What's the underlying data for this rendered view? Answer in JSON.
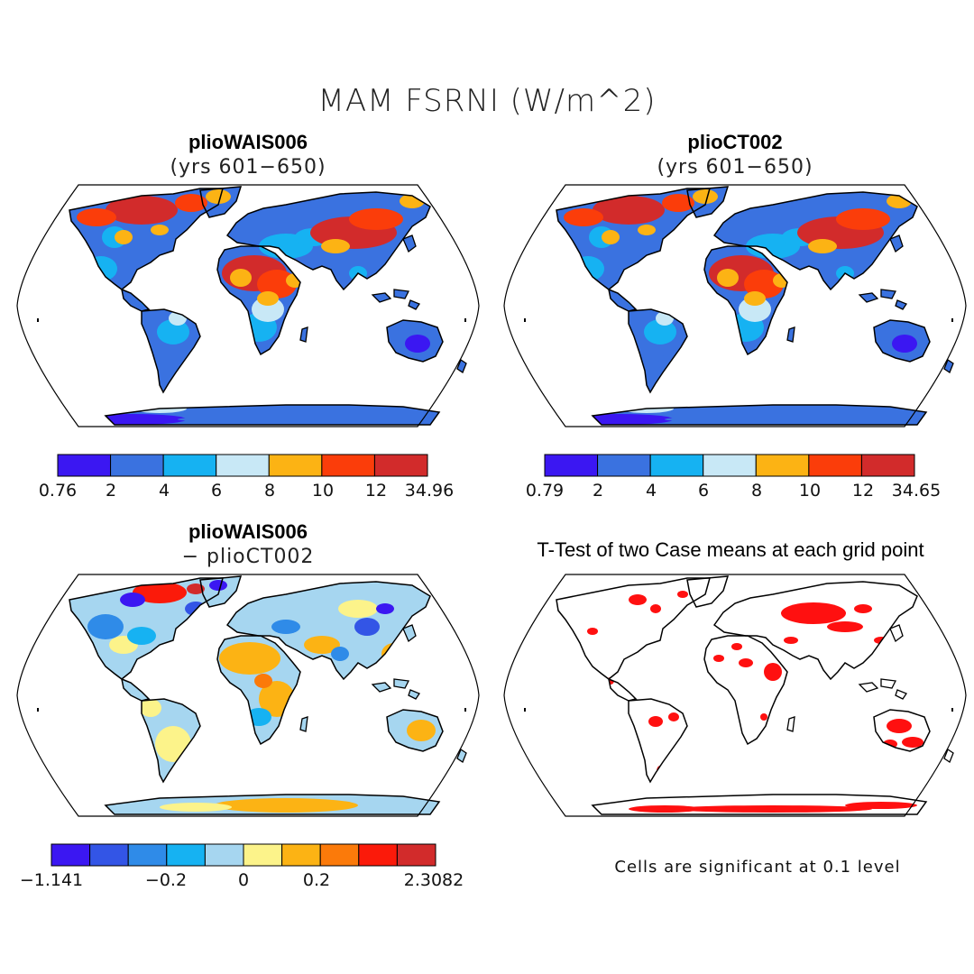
{
  "figure": {
    "title": "MAM FSRNI (W/m^2)"
  },
  "panels": [
    {
      "id": "p1",
      "title": "plioWAIS006",
      "subtitle": "(yrs 601−650)",
      "colorbar": {
        "colors": [
          "#3b17f2",
          "#3a72e0",
          "#16b2f2",
          "#c8e8f6",
          "#fcb314",
          "#fb3d0a",
          "#d22b2b"
        ],
        "labels": [
          "0.76",
          "2",
          "4",
          "6",
          "8",
          "10",
          "12",
          "34.96"
        ]
      }
    },
    {
      "id": "p2",
      "title": "plioCT002",
      "subtitle": "(yrs 601−650)",
      "colorbar": {
        "colors": [
          "#3b17f2",
          "#3a72e0",
          "#16b2f2",
          "#c8e8f6",
          "#fcb314",
          "#fb3d0a",
          "#d22b2b"
        ],
        "labels": [
          "0.79",
          "2",
          "4",
          "6",
          "8",
          "10",
          "12",
          "34.65"
        ]
      }
    },
    {
      "id": "p3",
      "title": "plioWAIS006",
      "subtitle": "− plioCT002",
      "colorbar": {
        "colors": [
          "#3b17f2",
          "#3355e6",
          "#2f8be8",
          "#16b2f2",
          "#a6d6f0",
          "#fcf38a",
          "#fcb314",
          "#fb7a0a",
          "#fb1a0a",
          "#d22b2b"
        ],
        "labels": [
          "−1.141",
          "−0.2",
          "0",
          "0.2",
          "2.3082"
        ]
      }
    },
    {
      "id": "p4",
      "title": "T-Test of two Case means at each grid point",
      "note": "Cells are significant at 0.1 level"
    }
  ]
}
